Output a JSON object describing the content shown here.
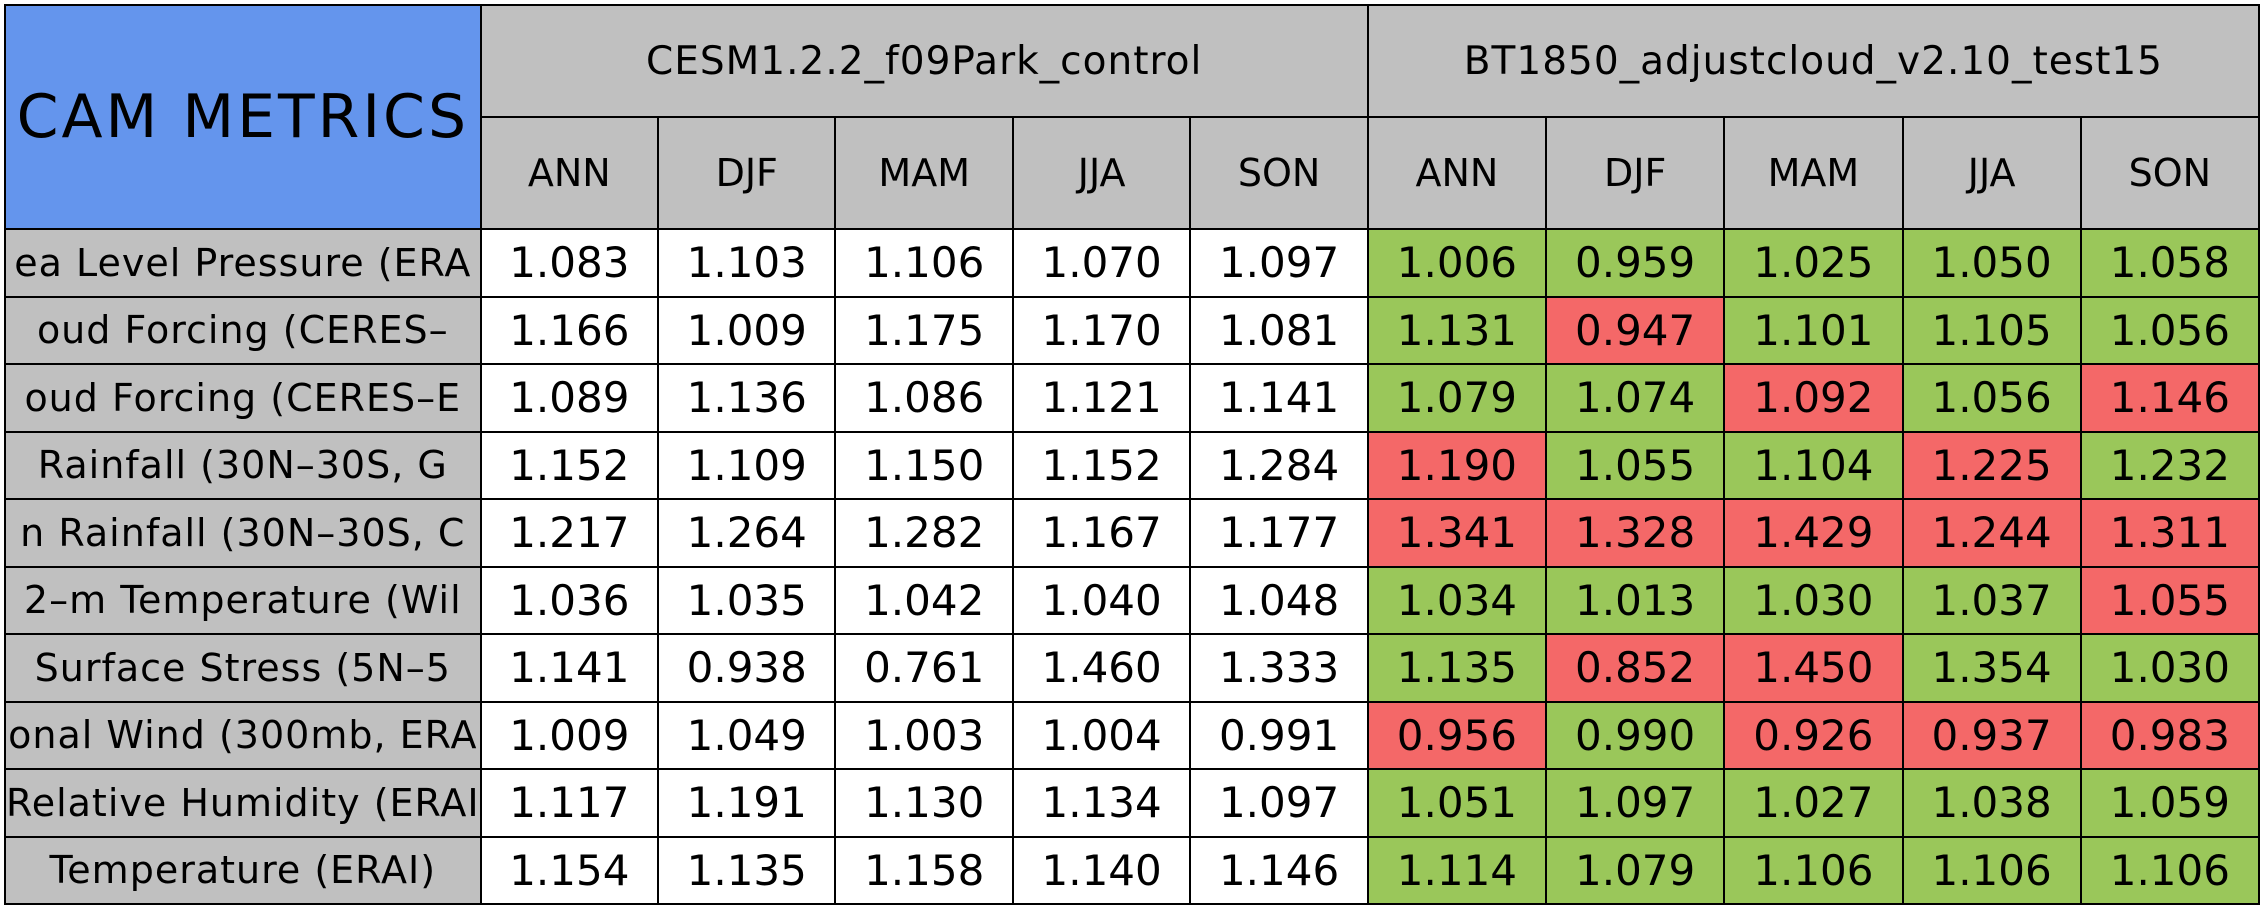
{
  "table_title": "CAM METRICS",
  "cases": [
    "CESM1.2.2_f09Park_control",
    "BT1850_adjustcloud_v2.10_test15"
  ],
  "seasons": [
    "ANN",
    "DJF",
    "MAM",
    "JJA",
    "SON"
  ],
  "row_labels": [
    "ea Level Pressure (ERA",
    "oud Forcing (CERES–",
    "oud Forcing (CERES–E",
    "Rainfall (30N–30S, G",
    "n Rainfall (30N–30S, C",
    "2–m Temperature (Wil",
    "Surface Stress (5N–5",
    "onal Wind (300mb, ERA",
    "Relative Humidity (ERAI",
    "Temperature (ERAI)"
  ],
  "colors": {
    "header_blue": "#6495ed",
    "header_gray": "#c0c0c0",
    "better": "#9ac75a",
    "worse": "#f46868",
    "plain": "#ffffff"
  },
  "chart_data": {
    "type": "table",
    "title": "CAM METRICS",
    "columns": [
      "ANN",
      "DJF",
      "MAM",
      "JJA",
      "SON"
    ],
    "series": [
      {
        "name": "CESM1.2.2_f09Park_control",
        "rows": [
          [
            "1.083",
            "1.103",
            "1.106",
            "1.070",
            "1.097"
          ],
          [
            "1.166",
            "1.009",
            "1.175",
            "1.170",
            "1.081"
          ],
          [
            "1.089",
            "1.136",
            "1.086",
            "1.121",
            "1.141"
          ],
          [
            "1.152",
            "1.109",
            "1.150",
            "1.152",
            "1.284"
          ],
          [
            "1.217",
            "1.264",
            "1.282",
            "1.167",
            "1.177"
          ],
          [
            "1.036",
            "1.035",
            "1.042",
            "1.040",
            "1.048"
          ],
          [
            "1.141",
            "0.938",
            "0.761",
            "1.460",
            "1.333"
          ],
          [
            "1.009",
            "1.049",
            "1.003",
            "1.004",
            "0.991"
          ],
          [
            "1.117",
            "1.191",
            "1.130",
            "1.134",
            "1.097"
          ],
          [
            "1.154",
            "1.135",
            "1.158",
            "1.140",
            "1.146"
          ]
        ]
      },
      {
        "name": "BT1850_adjustcloud_v2.10_test15",
        "rows": [
          [
            "1.006",
            "0.959",
            "1.025",
            "1.050",
            "1.058"
          ],
          [
            "1.131",
            "0.947",
            "1.101",
            "1.105",
            "1.056"
          ],
          [
            "1.079",
            "1.074",
            "1.092",
            "1.056",
            "1.146"
          ],
          [
            "1.190",
            "1.055",
            "1.104",
            "1.225",
            "1.232"
          ],
          [
            "1.341",
            "1.328",
            "1.429",
            "1.244",
            "1.311"
          ],
          [
            "1.034",
            "1.013",
            "1.030",
            "1.037",
            "1.055"
          ],
          [
            "1.135",
            "0.852",
            "1.450",
            "1.354",
            "1.030"
          ],
          [
            "0.956",
            "0.990",
            "0.926",
            "0.937",
            "0.983"
          ],
          [
            "1.051",
            "1.097",
            "1.027",
            "1.038",
            "1.059"
          ],
          [
            "1.114",
            "1.079",
            "1.106",
            "1.106",
            "1.106"
          ]
        ],
        "cell_status": [
          [
            "better",
            "better",
            "better",
            "better",
            "better"
          ],
          [
            "better",
            "worse",
            "better",
            "better",
            "better"
          ],
          [
            "better",
            "better",
            "worse",
            "better",
            "worse"
          ],
          [
            "worse",
            "better",
            "better",
            "worse",
            "better"
          ],
          [
            "worse",
            "worse",
            "worse",
            "worse",
            "worse"
          ],
          [
            "better",
            "better",
            "better",
            "better",
            "worse"
          ],
          [
            "better",
            "worse",
            "worse",
            "better",
            "better"
          ],
          [
            "worse",
            "better",
            "worse",
            "worse",
            "worse"
          ],
          [
            "better",
            "better",
            "better",
            "better",
            "better"
          ],
          [
            "better",
            "better",
            "better",
            "better",
            "better"
          ]
        ]
      }
    ]
  }
}
